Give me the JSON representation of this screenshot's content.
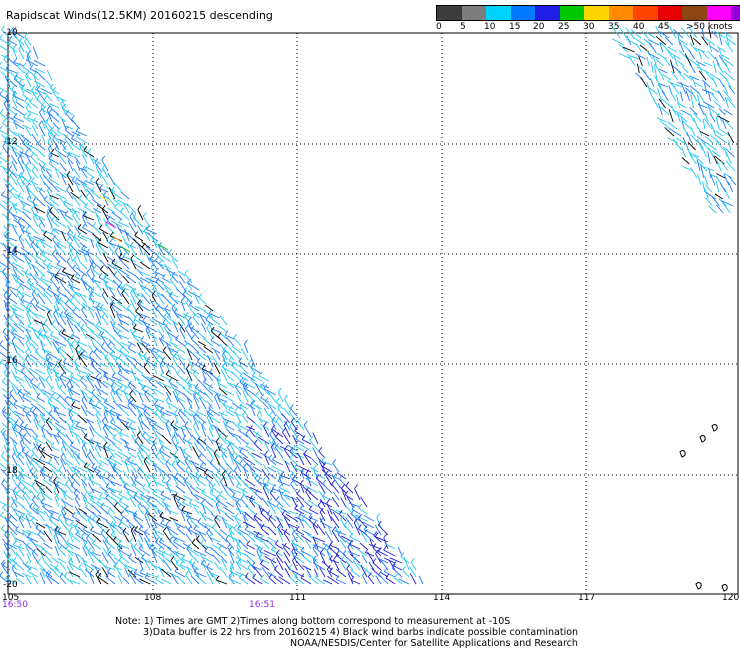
{
  "title": "Rapidscat Winds(12.5KM) 20160215 descending",
  "legend": {
    "colors": [
      "#3c3c3c",
      "#7d7d7d",
      "#00d2ff",
      "#0078ff",
      "#1e1ee6",
      "#00c800",
      "#ffd700",
      "#ff8c00",
      "#ff4500",
      "#e60000",
      "#8b4513",
      "#ff00ff",
      "#9400d3"
    ],
    "labels": [
      "0",
      "5",
      "10",
      "15",
      "20",
      "25",
      "30",
      "35",
      "40",
      "45",
      ">50 knots"
    ]
  },
  "map": {
    "lon_labels": [
      "105",
      "108",
      "111",
      "114",
      "117",
      "120"
    ],
    "lat_labels": [
      "-10",
      "-12",
      "-14",
      "-16",
      "-18",
      "-20"
    ],
    "times": [
      "16:50",
      "16:51"
    ]
  },
  "notes": {
    "line1": "Note: 1) Times are GMT 2)Times along bottom correspond to measurement at -10S",
    "line2": "3)Data buffer is 22 hrs from 20160215 4) Black wind barbs indicate possible contamination",
    "line3": "NOAA/NESDIS/Center for Satellite Applications and Research"
  }
}
